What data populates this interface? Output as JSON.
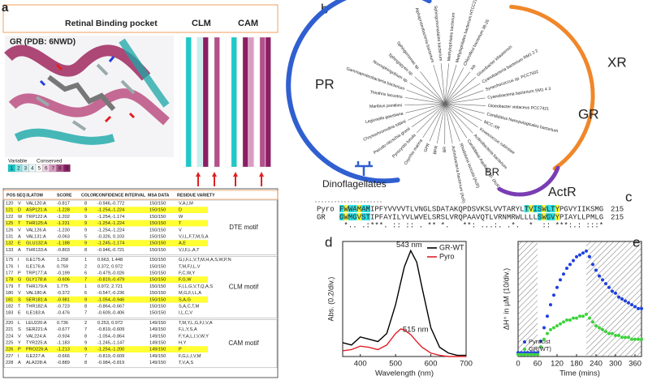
{
  "panel_a": {
    "label": "a",
    "title": "Retinal Binding pocket",
    "clm": "CLM",
    "cam": "CAM",
    "structure": "GR (PDB: 6NWD)",
    "scale_left": "Variable",
    "scale_right": "Conserved",
    "scale_grades": [
      "1",
      "2",
      "3",
      "4",
      "5",
      "6",
      "7",
      "8",
      "9"
    ],
    "scale_colors": [
      "#10c8c8",
      "#8ce6e6",
      "#c8f0f0",
      "#e6f8f8",
      "#ffffff",
      "#f0d2e6",
      "#dc9bc3",
      "#b4508c",
      "#8c1e64"
    ],
    "table": {
      "header": [
        "POS SEQ",
        "3LATOM",
        "SCORE",
        "COLOR",
        "CONFIDENCE INTERVAL",
        "MSA DATA",
        "RESIDUE VARIETY"
      ],
      "groups": [
        {
          "name": "DTE motif",
          "rows": [
            {
              "cells": [
                "120",
                "V",
                "VAL120:A",
                "-0.817",
                "8",
                "-0.946,-0.772",
                "150/150",
                "V,A,I,M"
              ],
              "highlight": false
            },
            {
              "cells": [
                "121",
                "D",
                "ASP121:A",
                "-1.228",
                "9",
                "-1.254,-1.224",
                "150/150",
                "D"
              ],
              "highlight": true
            },
            {
              "cells": [
                "122",
                "W",
                "TRP122:A",
                "-1.202",
                "9",
                "-1.254,-1.174",
                "150/150",
                "W"
              ],
              "highlight": false
            },
            {
              "cells": [
                "125",
                "T",
                "THR125:A",
                "-1.231",
                "9",
                "-1.254,-1.224",
                "150/150",
                "T"
              ],
              "highlight": true
            },
            {
              "cells": [
                "126",
                "V",
                "VAL126:A",
                "-1.230",
                "9",
                "-1.254,-1.224",
                "150/150",
                "V"
              ],
              "highlight": false
            },
            {
              "cells": [
                "131",
                "A",
                "VAL131:A",
                "-0.063",
                "5",
                "-0.326, 0.103",
                "150/150",
                "V,I,L,F,T,M,S,A"
              ],
              "highlight": false
            },
            {
              "cells": [
                "132",
                "E",
                "GLU132:A",
                "-1.188",
                "9",
                "-1.245,-1.174",
                "150/150",
                "A,E"
              ],
              "highlight": true
            },
            {
              "cells": [
                "133",
                "A",
                "THR133:A",
                "-0.803",
                "8",
                "-0.946,-0.721",
                "150/150",
                "V,I,F,L,A,T"
              ],
              "highlight": false
            }
          ]
        },
        {
          "name": "CLM motif",
          "rows": [
            {
              "cells": [
                "175",
                "I",
                "ILE175:A",
                "1.258",
                "1",
                "0.663, 1.448",
                "150/150",
                "G,I,F,L,V,T,M,H,A,S,W,P,N"
              ],
              "highlight": false
            },
            {
              "cells": [
                "176",
                "I",
                "ILE176:A",
                "0.759",
                "2",
                "0.372, 0.972",
                "150/150",
                "T,M,F,I,L,V"
              ],
              "highlight": false
            },
            {
              "cells": [
                "177",
                "P",
                "TRP177:A",
                "-0.199",
                "6",
                "-0.479,-0.026",
                "150/150",
                "F,C,W,Y"
              ],
              "highlight": false
            },
            {
              "cells": [
                "178",
                "G",
                "GLY178:A",
                "-0.606",
                "7",
                "-0.819,-0.479",
                "150/150",
                "F,G,W"
              ],
              "highlight": true
            },
            {
              "cells": [
                "179",
                "T",
                "THR179:A",
                "1.775",
                "1",
                "0.972, 2.721",
                "150/150",
                "F,I,L,G,V,T,Q,A,S"
              ],
              "highlight": false
            },
            {
              "cells": [
                "180",
                "V",
                "VAL180:A",
                "-0.372",
                "6",
                "-0.547,-0.236",
                "150/150",
                "M,G,F,I,L,A"
              ],
              "highlight": false
            },
            {
              "cells": [
                "181",
                "S",
                "SER181:A",
                "-0.981",
                "9",
                "-1.054,-0.946",
                "150/150",
                "S,A,G"
              ],
              "highlight": true
            },
            {
              "cells": [
                "182",
                "T",
                "THR182:A",
                "-0.723",
                "8",
                "-0.864,-0.667",
                "150/150",
                "S,A,C,T,M"
              ],
              "highlight": false
            },
            {
              "cells": [
                "183",
                "E",
                "ILE183:A",
                "-0.476",
                "7",
                "-0.609,-0.406",
                "150/150",
                "I,L,C,V"
              ],
              "highlight": false
            }
          ]
        },
        {
          "name": "CAM motif",
          "rows": [
            {
              "cells": [
                "220",
                "L",
                "LEU220:A",
                "0.736",
                "2",
                "0.253, 0.972",
                "149/150",
                "T,M,Y,L,G,F,I,V,A"
              ],
              "highlight": false
            },
            {
              "cells": [
                "221",
                "S",
                "SER221:A",
                "-0.677",
                "7",
                "-0.819,-0.609",
                "149/150",
                "F,L,Y,S,A"
              ],
              "highlight": false
            },
            {
              "cells": [
                "224",
                "V",
                "VAL224:A",
                "-0.934",
                "8",
                "-1.054,-0.864",
                "149/150",
                "F,Y,A,L,I,V,W,Y"
              ],
              "highlight": false
            },
            {
              "cells": [
                "225",
                "Y",
                "TYR225:A",
                "-1.183",
                "9",
                "-1.245,-1.147",
                "149/150",
                "H,Y"
              ],
              "highlight": false
            },
            {
              "cells": [
                "226",
                "P",
                "PRO226:A",
                "-1.213",
                "9",
                "-1.254,-1.200",
                "149/150",
                "P"
              ],
              "highlight": true
            },
            {
              "cells": [
                "227",
                "I",
                "ILE227:A",
                "-0.666",
                "7",
                "-0.819,-0.609",
                "149/150",
                "F,G,L,I,V,M"
              ],
              "highlight": false
            },
            {
              "cells": [
                "228",
                "A",
                "ALA228:A",
                "-0.889",
                "8",
                "-0.984,-0.819",
                "149/150",
                "T,V,A,S"
              ],
              "highlight": false
            }
          ]
        }
      ]
    }
  },
  "panel_b": {
    "label": "b",
    "clades": [
      {
        "name": "PR",
        "color": "#2f5fd0"
      },
      {
        "name": "XR",
        "color": "#f0872a"
      },
      {
        "name": "GR"
      },
      {
        "name": "ActR",
        "color": "#7a3db3"
      },
      {
        "name": "BR"
      },
      {
        "name": "Dinoflagellates",
        "color": "#2f5fd0"
      }
    ],
    "leaves": [
      "Alphaproteobacteria bacterium",
      "Sphingomonadales bacterium",
      "Methylophilales bacterium",
      "Methylophilales bacterium HTCC2181",
      "Chloroflexi bacterium 38-26",
      "XR",
      "Gloeobacter kilaueensis",
      "Cyanobacteria bacterium RM1 2 2",
      "Synechococcus sp. PCC7502",
      "Cyanobacteria bacterium SM1 4 3",
      "Gloeobacter violaceus PCC7421",
      "Candidatus Nanopelagicales bacterium",
      "MCC-XR",
      "Kineococcus rubinsiae",
      "Actinobacteria bacterium",
      "Candidatus Aquiluna sp. (AcR)",
      "Rhodoluna lacicola (AcR)",
      "Actinobacteria bacterium (AcR)",
      "BR",
      "BPR",
      "GPR",
      "Oxyrrhis marina",
      "Pyrocystis lunula",
      "Pseudo-nitzschia granii",
      "Chrysochromulina tobinii",
      "Legionella geestiana",
      "Maribius pontilimi",
      "Thiothrix lacustris",
      "Gammaproteobacteria bacterium",
      "Novosphingobium sp.",
      "Sphingopyxis sp.",
      "Sphingomonas sp."
    ]
  },
  "panel_c": {
    "label": "c",
    "rows": [
      {
        "name": "Pyro",
        "sequence": "FWWAMAMIPFYVVVVTLVNGLSDATAKQPDSVKSLVVTARYLTVISWLTYPGVYIIKSMG",
        "end": "215"
      },
      {
        "name": "GR",
        "sequence": "GWMGVSTIPFAYILYVLWVELSRSLVRQPAAVQTLVRNMRWLLLLSWGVYPIAYLLPMLG",
        "end": "215"
      }
    ],
    "consensus": " *.. .:***. :: :: . ** *.   **: ...:. .*.  *  :: ***:.: :::*"
  },
  "chart_data": [
    {
      "type": "line",
      "label": "d",
      "x_label": "Wavelength (nm)",
      "y_label": "Abs. (0.2/div.)",
      "x": [
        350,
        375,
        400,
        425,
        450,
        475,
        500,
        515,
        525,
        543,
        560,
        575,
        600,
        625,
        650,
        675,
        700
      ],
      "series": [
        {
          "name": "GR-WT",
          "color": "#000000",
          "peak_label": "543 nm",
          "values": [
            0.12,
            0.1,
            0.17,
            0.15,
            0.13,
            0.2,
            0.45,
            0.65,
            0.78,
            0.92,
            0.82,
            0.6,
            0.25,
            0.08,
            0.03,
            0.01,
            0.01
          ]
        },
        {
          "name": "Pyro",
          "color": "#e0202a",
          "peak_label": "515 nm",
          "values": [
            0.05,
            0.06,
            0.09,
            0.08,
            0.06,
            0.1,
            0.2,
            0.24,
            0.23,
            0.19,
            0.13,
            0.08,
            0.03,
            0.01,
            0.0,
            0.0,
            0.0
          ]
        }
      ],
      "xlim": [
        350,
        700
      ],
      "xticks": [
        400,
        500,
        600,
        700
      ],
      "ylim": [
        0,
        1
      ],
      "legend": "top-right"
    },
    {
      "type": "scatter",
      "label": "e",
      "x_label": "Time (mins)",
      "y_label": "ΔH⁺ in µM (10/div.)",
      "x": [
        0,
        10,
        20,
        30,
        40,
        50,
        60,
        70,
        80,
        90,
        100,
        110,
        120,
        130,
        140,
        150,
        160,
        170,
        180,
        190,
        200,
        210,
        220,
        230,
        240,
        250,
        260,
        270,
        280,
        290,
        300,
        310,
        320,
        330,
        340,
        350,
        360,
        370,
        380
      ],
      "series": [
        {
          "name": "Pyrocist",
          "color": "#1f3fe0",
          "values": [
            2,
            2,
            2,
            2,
            2,
            2,
            2,
            8,
            15,
            21,
            27,
            32,
            36,
            40,
            43,
            46,
            48,
            50,
            52,
            53,
            54,
            55,
            52,
            48,
            45,
            42,
            40,
            38,
            36,
            34,
            33,
            31,
            30,
            29,
            28,
            27,
            26,
            25,
            25
          ]
        },
        {
          "name": "GR(WT)",
          "color": "#3cd23c",
          "values": [
            1,
            1,
            1,
            1,
            1,
            1,
            1,
            5,
            9,
            12,
            14,
            15,
            16,
            17,
            18,
            19,
            19,
            20,
            20,
            21,
            21,
            22,
            20,
            18,
            16,
            15,
            14,
            13,
            12,
            12,
            11,
            11,
            10,
            10,
            10,
            9,
            9,
            9,
            9
          ]
        }
      ],
      "xlim": [
        0,
        380
      ],
      "xticks": [
        0,
        60,
        120,
        180,
        240,
        300,
        360
      ],
      "ylim": [
        0,
        60
      ],
      "dark_periods": [
        [
          0,
          60
        ],
        [
          210,
          380
        ]
      ],
      "legend": "bottom-left"
    }
  ]
}
